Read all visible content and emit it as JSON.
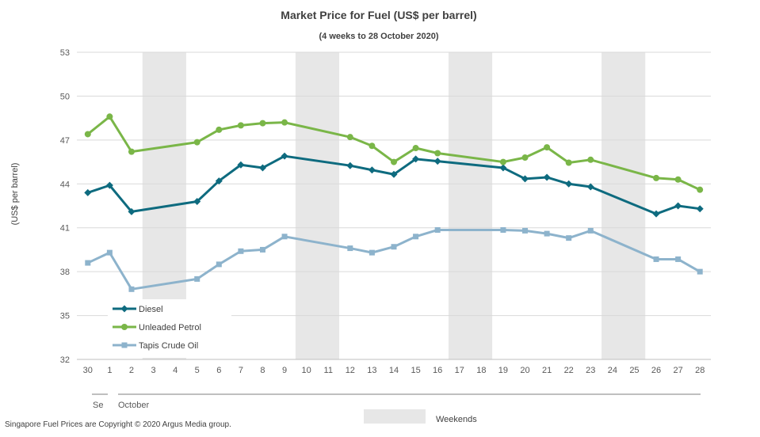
{
  "chart_data": {
    "type": "line",
    "title": "Market Price for Fuel (US$ per barrel)",
    "subtitle": "(4 weeks to 28 October 2020)",
    "xlabel": "",
    "ylabel": "(US$ per barrel)",
    "ylim": [
      32,
      53
    ],
    "yticks": [
      32,
      35,
      38,
      41,
      44,
      47,
      50,
      53
    ],
    "grid": true,
    "legend_position": "bottom-left",
    "categories": [
      "30",
      "1",
      "2",
      "3",
      "4",
      "5",
      "6",
      "7",
      "8",
      "9",
      "10",
      "11",
      "12",
      "13",
      "14",
      "15",
      "16",
      "17",
      "18",
      "19",
      "20",
      "21",
      "22",
      "23",
      "24",
      "25",
      "26",
      "27",
      "28"
    ],
    "month_labels": [
      "Se",
      "October"
    ],
    "weekend_blocks": [
      [
        "3",
        "4"
      ],
      [
        "10",
        "11"
      ],
      [
        "17",
        "18"
      ],
      [
        "24",
        "25"
      ]
    ],
    "weekend_label": "Weekends",
    "series": [
      {
        "name": "Diesel",
        "color": "#0e6b7f",
        "marker": "diamond",
        "values": [
          43.4,
          43.9,
          42.1,
          null,
          null,
          42.8,
          44.2,
          45.3,
          45.1,
          45.9,
          null,
          null,
          45.25,
          44.95,
          44.65,
          45.7,
          45.55,
          null,
          null,
          45.1,
          44.35,
          44.45,
          44.0,
          43.8,
          null,
          null,
          41.95,
          42.5,
          42.3
        ]
      },
      {
        "name": "Unleaded Petrol",
        "color": "#7ab648",
        "marker": "circle",
        "values": [
          47.4,
          48.6,
          46.2,
          null,
          null,
          46.85,
          47.7,
          48.0,
          48.15,
          48.2,
          null,
          null,
          47.2,
          46.6,
          45.5,
          46.45,
          46.1,
          null,
          null,
          45.5,
          45.8,
          46.5,
          45.45,
          45.65,
          null,
          null,
          44.4,
          44.3,
          43.6
        ]
      },
      {
        "name": "Tapis Crude Oil",
        "color": "#8db3cc",
        "marker": "square",
        "values": [
          38.6,
          39.3,
          36.8,
          null,
          null,
          37.5,
          38.5,
          39.4,
          39.5,
          40.4,
          null,
          null,
          39.6,
          39.3,
          39.7,
          40.4,
          40.85,
          null,
          null,
          40.85,
          40.8,
          40.6,
          40.3,
          40.8,
          null,
          null,
          38.85,
          38.85,
          38.0
        ]
      }
    ]
  },
  "footer": {
    "copyright": "Singapore Fuel Prices are Copyright © 2020 Argus Media group."
  }
}
